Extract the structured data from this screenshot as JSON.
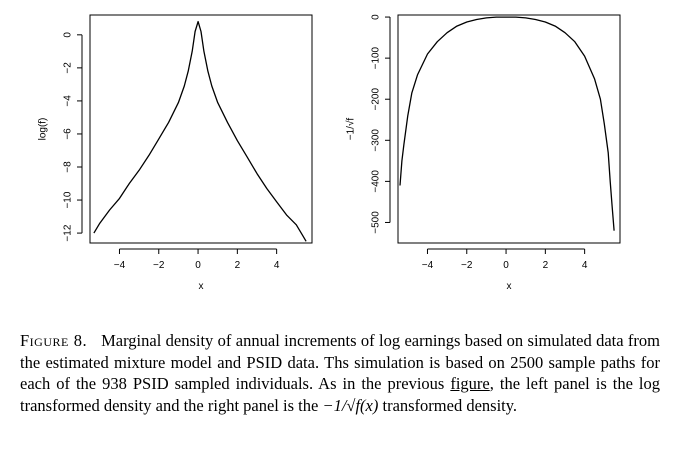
{
  "chart_data": [
    {
      "type": "line",
      "panel": "left",
      "xlabel": "x",
      "ylabel": "log(f)",
      "xlim": [
        -5.5,
        5.8
      ],
      "ylim": [
        -12.6,
        1.2
      ],
      "xticks": [
        -4,
        -2,
        0,
        2,
        4
      ],
      "xtick_labels": [
        "−4",
        "−2",
        "0",
        "2",
        "4"
      ],
      "yticks": [
        0,
        -2,
        -4,
        -6,
        -8,
        -10,
        -12
      ],
      "ytick_labels": [
        "0",
        "−2",
        "−4",
        "−6",
        "−8",
        "−10",
        "−12"
      ],
      "x": [
        -5.3,
        -5.0,
        -4.5,
        -4.0,
        -3.5,
        -3.0,
        -2.5,
        -2.0,
        -1.5,
        -1.0,
        -0.7,
        -0.5,
        -0.3,
        -0.15,
        0.0,
        0.15,
        0.3,
        0.5,
        0.7,
        1.0,
        1.5,
        2.0,
        2.5,
        3.0,
        3.5,
        4.0,
        4.5,
        5.0,
        5.3,
        5.5
      ],
      "y": [
        -12.0,
        -11.4,
        -10.6,
        -9.9,
        -9.0,
        -8.2,
        -7.3,
        -6.3,
        -5.3,
        -4.1,
        -3.1,
        -2.2,
        -1.0,
        0.2,
        0.8,
        0.2,
        -1.0,
        -2.2,
        -3.1,
        -4.1,
        -5.3,
        -6.4,
        -7.4,
        -8.4,
        -9.3,
        -10.1,
        -10.9,
        -11.5,
        -12.1,
        -12.5
      ],
      "grid": false
    },
    {
      "type": "line",
      "panel": "right",
      "xlabel": "x",
      "ylabel": "−1/√f",
      "xlim": [
        -5.5,
        5.8
      ],
      "ylim": [
        -550,
        5
      ],
      "xticks": [
        -4,
        -2,
        0,
        2,
        4
      ],
      "xtick_labels": [
        "−4",
        "−2",
        "0",
        "2",
        "4"
      ],
      "yticks": [
        0,
        -100,
        -200,
        -300,
        -400,
        -500
      ],
      "ytick_labels": [
        "0",
        "−100",
        "−200",
        "−300",
        "−400",
        "−500"
      ],
      "x": [
        -5.4,
        -5.3,
        -5.2,
        -5.0,
        -4.8,
        -4.5,
        -4.0,
        -3.5,
        -3.0,
        -2.5,
        -2.0,
        -1.5,
        -1.0,
        -0.5,
        0.0,
        0.5,
        1.0,
        1.5,
        2.0,
        2.5,
        3.0,
        3.5,
        4.0,
        4.5,
        4.8,
        5.0,
        5.2,
        5.3,
        5.4,
        5.5
      ],
      "y": [
        -410,
        -350,
        -310,
        -240,
        -185,
        -140,
        -90,
        -60,
        -38,
        -22,
        -12,
        -6,
        -2,
        0,
        0,
        0,
        -2,
        -6,
        -12,
        -22,
        -38,
        -60,
        -95,
        -150,
        -200,
        -260,
        -330,
        -400,
        -460,
        -520
      ],
      "grid": false
    }
  ],
  "caption": {
    "label": "Figure 8.",
    "text_1": "Marginal density of annual increments of log earnings based on simulated data from the estimated mixture model and PSID data. Ths simulation is based on 2500 sample paths for each of the 938 PSID sampled individuals. As in the previous ",
    "link": "figure",
    "text_2": ", the left panel is the log transformed density and the right panel is the ",
    "math": "−1/√f(x)",
    "text_3": " transformed density."
  }
}
